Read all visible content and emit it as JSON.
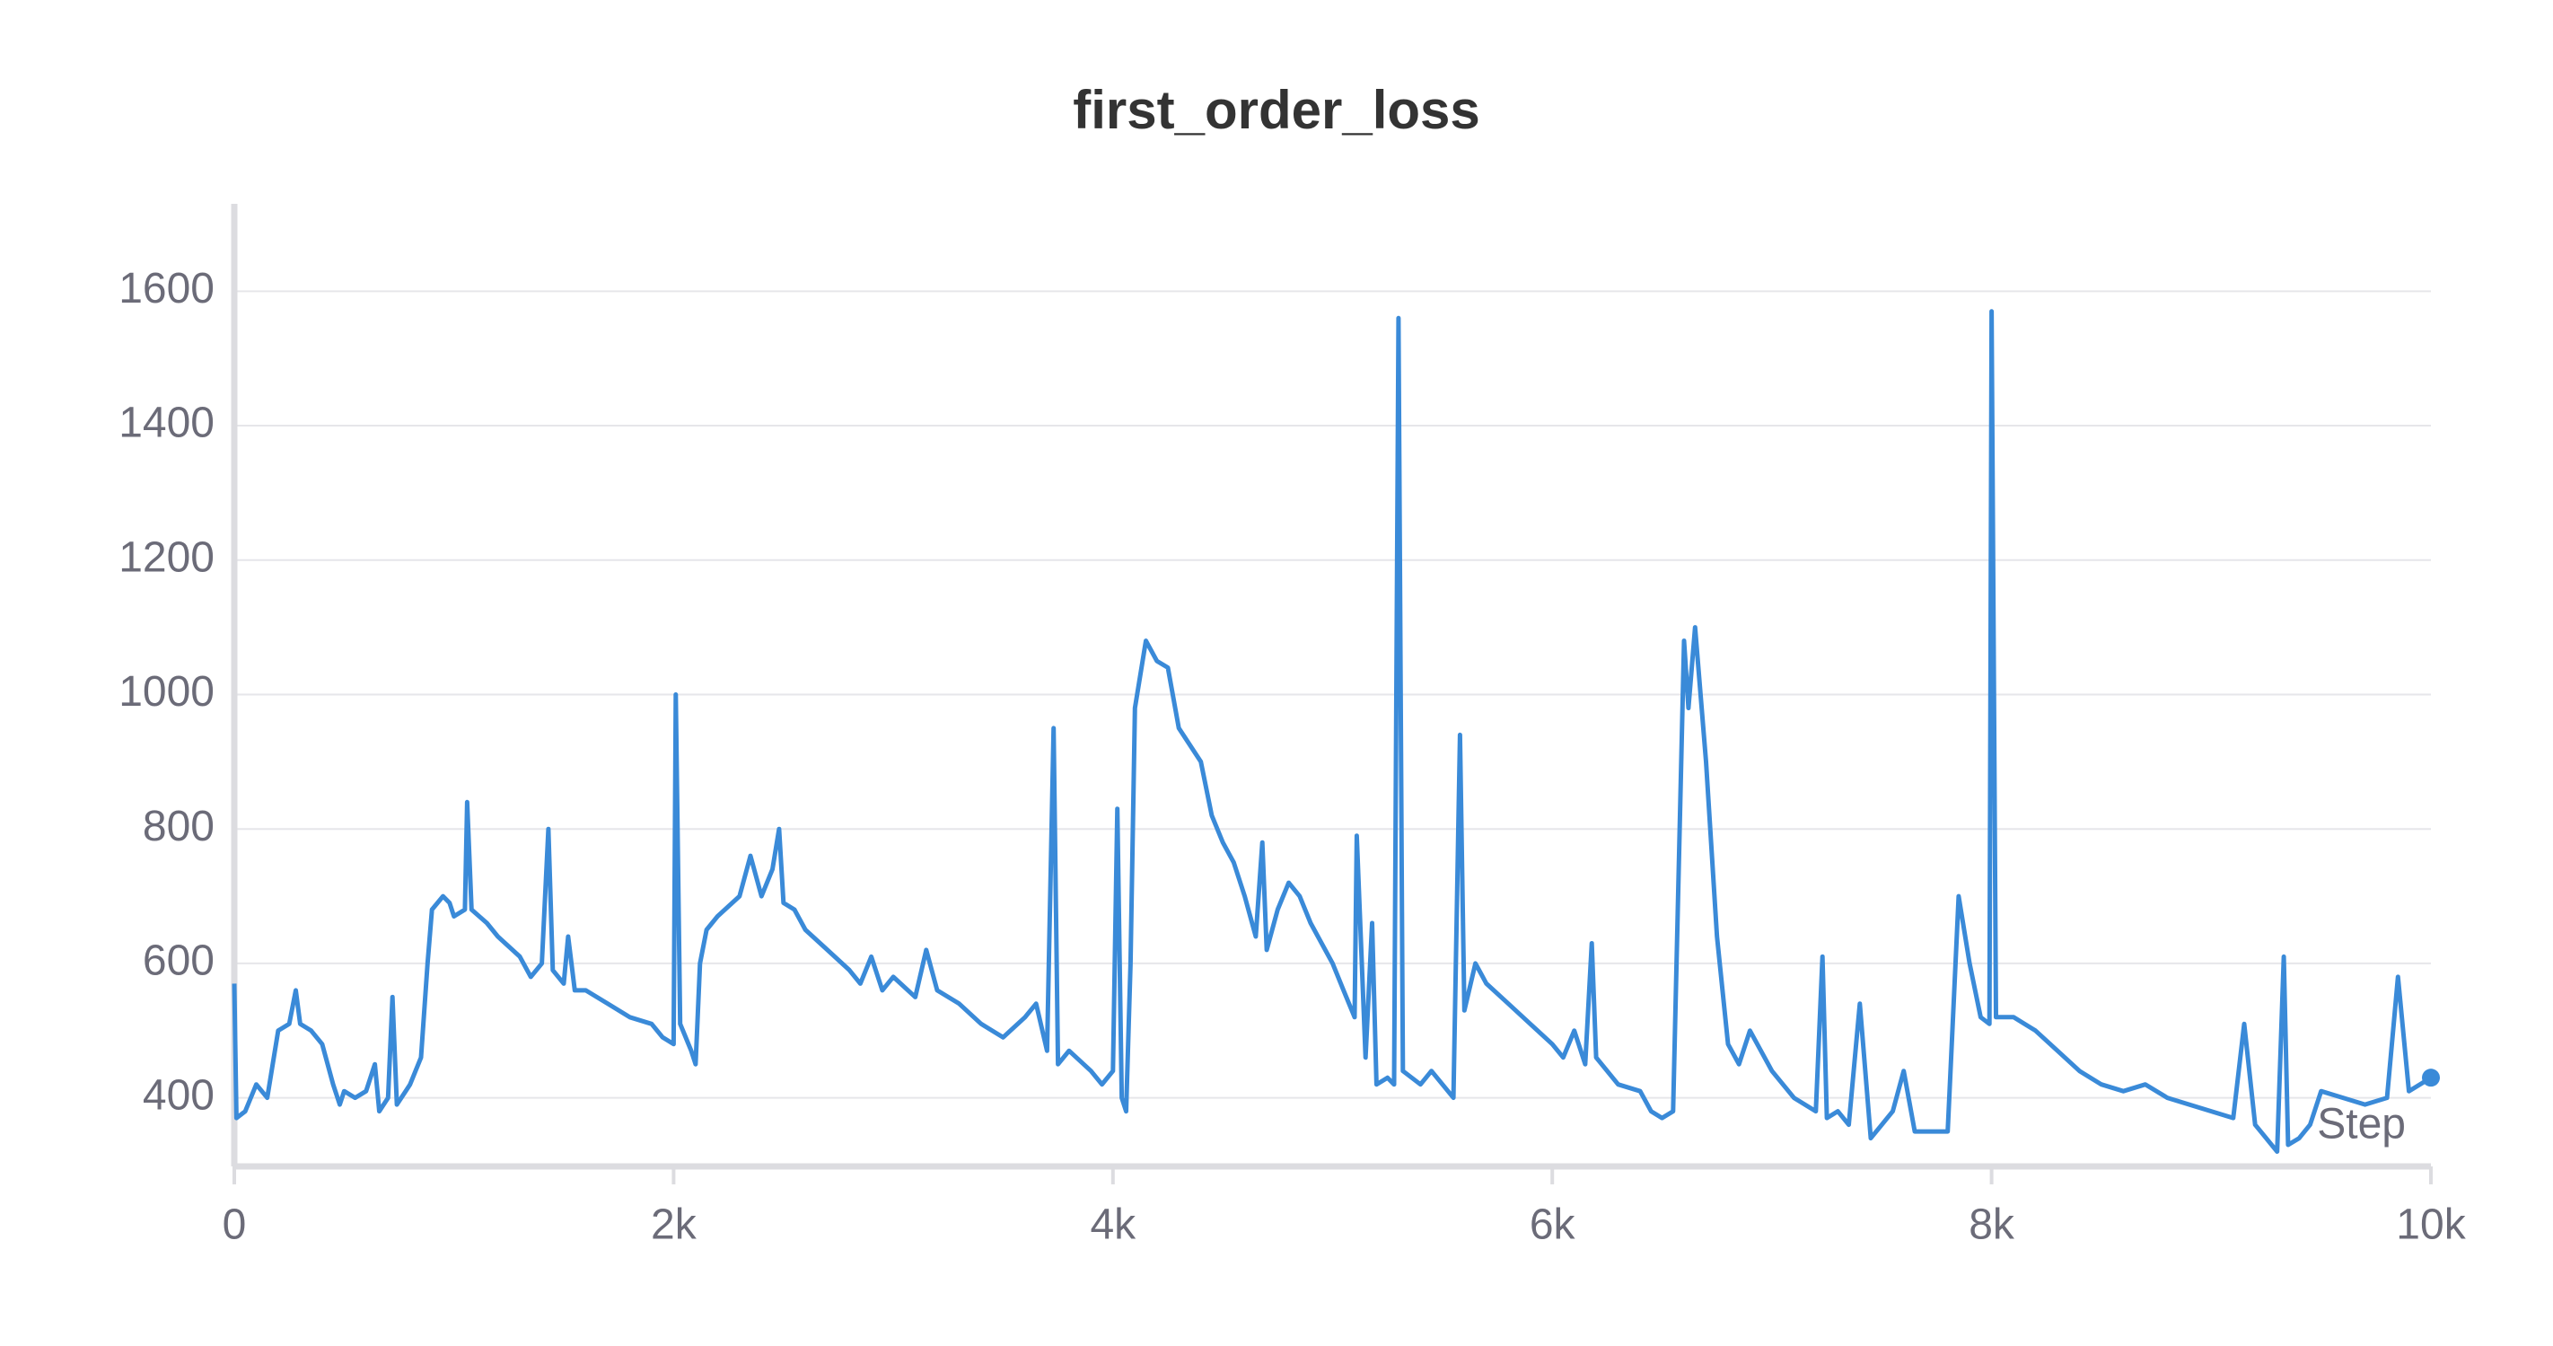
{
  "chart_data": {
    "type": "line",
    "title": "first_order_loss",
    "x_label": "Step",
    "x": [
      0,
      10,
      50,
      100,
      150,
      200,
      250,
      280,
      300,
      350,
      400,
      450,
      480,
      500,
      550,
      600,
      640,
      660,
      700,
      720,
      740,
      780,
      800,
      850,
      880,
      900,
      950,
      980,
      1000,
      1050,
      1060,
      1080,
      1150,
      1200,
      1300,
      1350,
      1400,
      1430,
      1450,
      1500,
      1520,
      1550,
      1600,
      1700,
      1800,
      1900,
      1950,
      2000,
      2010,
      2030,
      2080,
      2100,
      2120,
      2150,
      2200,
      2300,
      2350,
      2400,
      2450,
      2480,
      2500,
      2550,
      2600,
      2700,
      2800,
      2850,
      2900,
      2950,
      3000,
      3100,
      3150,
      3200,
      3300,
      3400,
      3500,
      3600,
      3650,
      3700,
      3730,
      3750,
      3800,
      3900,
      3950,
      4000,
      4020,
      4040,
      4060,
      4080,
      4100,
      4150,
      4200,
      4250,
      4300,
      4400,
      4450,
      4500,
      4550,
      4600,
      4650,
      4680,
      4700,
      4750,
      4800,
      4850,
      4900,
      5000,
      5050,
      5100,
      5110,
      5150,
      5180,
      5200,
      5250,
      5280,
      5300,
      5320,
      5400,
      5450,
      5500,
      5550,
      5580,
      5600,
      5650,
      5700,
      5800,
      5900,
      6000,
      6050,
      6100,
      6150,
      6180,
      6200,
      6300,
      6400,
      6450,
      6500,
      6550,
      6600,
      6620,
      6650,
      6700,
      6750,
      6800,
      6850,
      6900,
      7000,
      7100,
      7200,
      7230,
      7250,
      7300,
      7350,
      7400,
      7450,
      7500,
      7550,
      7600,
      7650,
      7700,
      7800,
      7850,
      7900,
      7950,
      7990,
      8000,
      8020,
      8100,
      8200,
      8300,
      8400,
      8500,
      8600,
      8700,
      8800,
      8900,
      9000,
      9100,
      9150,
      9200,
      9250,
      9300,
      9330,
      9350,
      9400,
      9450,
      9500,
      9600,
      9700,
      9800,
      9850,
      9900,
      10000
    ],
    "series": [
      {
        "color": "#3a8ad8",
        "values": [
          570,
          370,
          380,
          420,
          400,
          500,
          510,
          560,
          510,
          500,
          480,
          420,
          390,
          410,
          400,
          410,
          450,
          380,
          400,
          550,
          390,
          410,
          420,
          460,
          600,
          680,
          700,
          690,
          670,
          680,
          840,
          680,
          660,
          640,
          610,
          580,
          600,
          800,
          590,
          570,
          640,
          560,
          560,
          540,
          520,
          510,
          490,
          480,
          1000,
          510,
          470,
          450,
          600,
          650,
          670,
          700,
          760,
          700,
          740,
          800,
          690,
          680,
          650,
          620,
          590,
          570,
          610,
          560,
          580,
          550,
          620,
          560,
          540,
          510,
          490,
          520,
          540,
          470,
          950,
          450,
          470,
          440,
          420,
          440,
          830,
          400,
          380,
          600,
          980,
          1080,
          1050,
          1040,
          950,
          900,
          820,
          780,
          750,
          700,
          640,
          780,
          620,
          680,
          720,
          700,
          660,
          600,
          560,
          520,
          790,
          460,
          660,
          420,
          430,
          420,
          1560,
          440,
          420,
          440,
          420,
          400,
          940,
          530,
          600,
          570,
          540,
          510,
          480,
          460,
          500,
          450,
          630,
          460,
          420,
          410,
          380,
          370,
          380,
          1080,
          980,
          1100,
          900,
          640,
          480,
          450,
          500,
          440,
          400,
          380,
          610,
          370,
          380,
          360,
          540,
          340,
          360,
          380,
          440,
          350,
          350,
          350,
          700,
          600,
          520,
          510,
          1570,
          520,
          520,
          500,
          470,
          440,
          420,
          410,
          420,
          400,
          390,
          380,
          370,
          510,
          360,
          340,
          320,
          610,
          330,
          340,
          360,
          410,
          400,
          390,
          400,
          580,
          410,
          430
        ]
      }
    ],
    "xlim": [
      0,
      10000
    ],
    "xticks": [
      0,
      {
        "value": 2000,
        "label": "2k"
      },
      {
        "value": 4000,
        "label": "4k"
      },
      {
        "value": 6000,
        "label": "6k"
      },
      {
        "value": 8000,
        "label": "8k"
      },
      {
        "value": 10000,
        "label": "10k"
      }
    ],
    "ylim": [
      298,
      1730
    ],
    "yticks": [
      400,
      600,
      800,
      1000,
      1200,
      1400,
      1600
    ],
    "grid": true
  }
}
